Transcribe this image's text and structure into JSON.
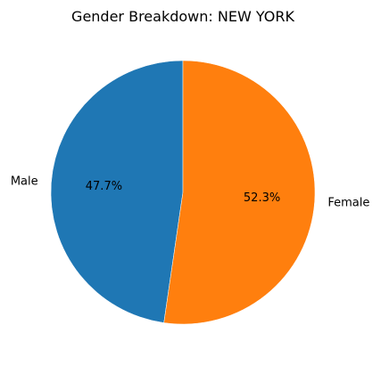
{
  "chart_data": {
    "type": "pie",
    "title": "Gender Breakdown: NEW YORK",
    "slices": [
      {
        "label": "Male",
        "value": 47.7,
        "pct_label": "47.7%",
        "color": "#1f77b4"
      },
      {
        "label": "Female",
        "value": 52.3,
        "pct_label": "52.3%",
        "color": "#ff7f0e"
      }
    ],
    "start_angle_deg": 90,
    "direction": "counterclockwise",
    "slice_edge_color": "#ffffff"
  }
}
